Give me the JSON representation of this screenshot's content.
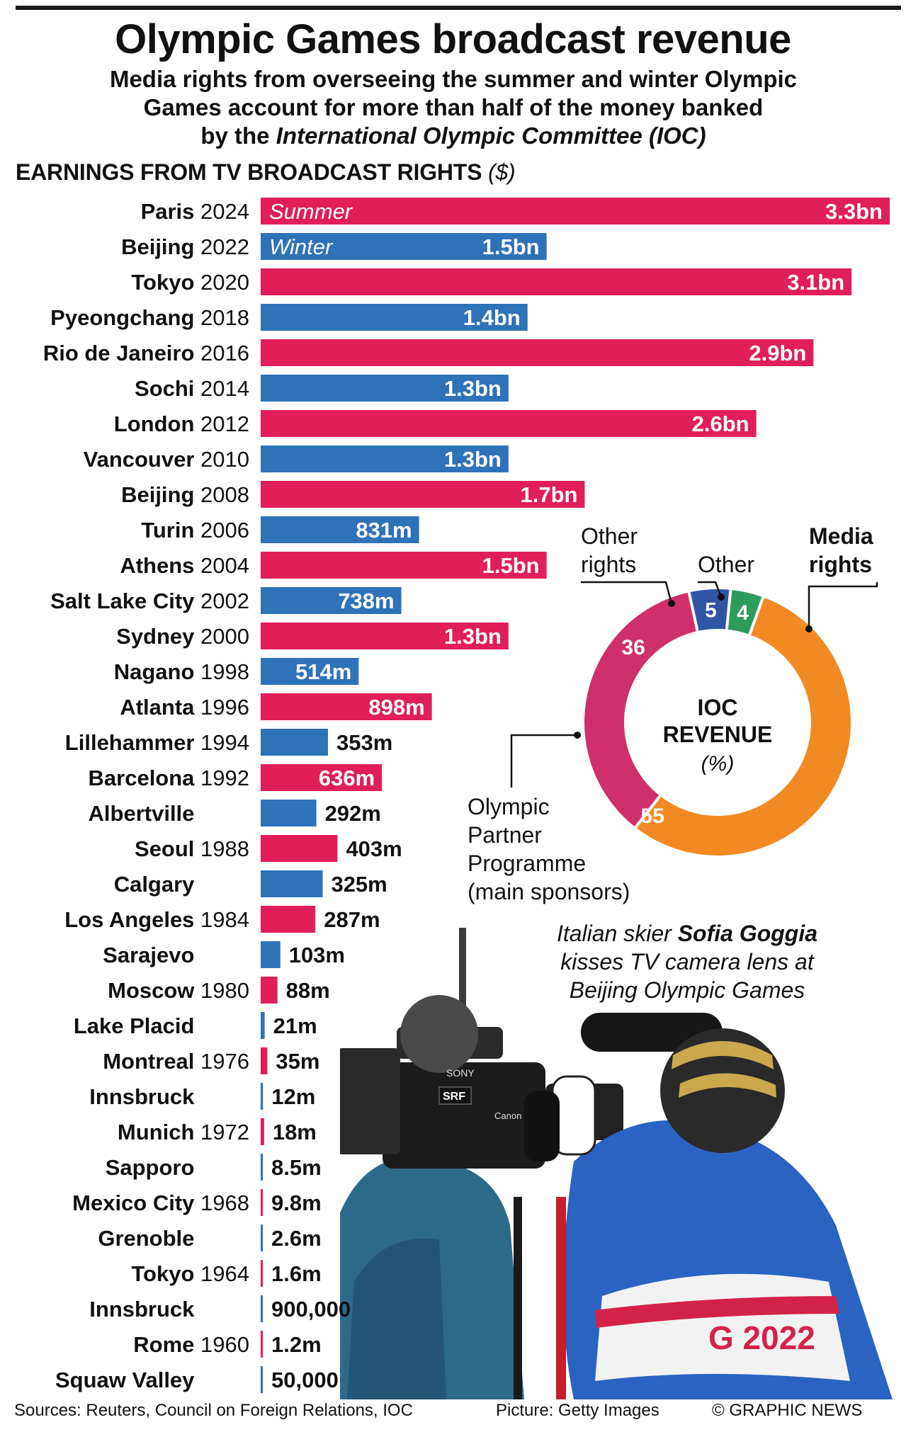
{
  "title": "Olympic Games broadcast revenue",
  "subtitle": {
    "line1": "Media rights from overseeing the summer and winter Olympic",
    "line2": "Games account for more than half of the money banked",
    "line3_prefix": "by the ",
    "line3_italic": "International Olympic Committee (IOC)"
  },
  "chart_heading": {
    "text": "EARNINGS FROM TV BROADCAST RIGHTS",
    "unit": "($)"
  },
  "colors": {
    "summer": "#e01e5a",
    "winter": "#2e72b8",
    "donut_media": "#f28a24",
    "donut_olympic": "#cf2f6b",
    "donut_other_rights": "#2f55a4",
    "donut_other": "#2e9b5c"
  },
  "chart_data": [
    {
      "type": "bar",
      "orientation": "horizontal",
      "title": "EARNINGS FROM TV BROADCAST RIGHTS ($)",
      "unit": "USD",
      "legend": [
        "Summer",
        "Winter"
      ],
      "categories": [
        {
          "city": "Paris",
          "year": "2024",
          "season": "summer",
          "value": 3300000000,
          "label": "3.3bn"
        },
        {
          "city": "Beijing",
          "year": "2022",
          "season": "winter",
          "value": 1500000000,
          "label": "1.5bn"
        },
        {
          "city": "Tokyo",
          "year": "2020",
          "season": "summer",
          "value": 3100000000,
          "label": "3.1bn"
        },
        {
          "city": "Pyeongchang",
          "year": "2018",
          "season": "winter",
          "value": 1400000000,
          "label": "1.4bn"
        },
        {
          "city": "Rio de Janeiro",
          "year": "2016",
          "season": "summer",
          "value": 2900000000,
          "label": "2.9bn"
        },
        {
          "city": "Sochi",
          "year": "2014",
          "season": "winter",
          "value": 1300000000,
          "label": "1.3bn"
        },
        {
          "city": "London",
          "year": "2012",
          "season": "summer",
          "value": 2600000000,
          "label": "2.6bn"
        },
        {
          "city": "Vancouver",
          "year": "2010",
          "season": "winter",
          "value": 1300000000,
          "label": "1.3bn"
        },
        {
          "city": "Beijing",
          "year": "2008",
          "season": "summer",
          "value": 1700000000,
          "label": "1.7bn"
        },
        {
          "city": "Turin",
          "year": "2006",
          "season": "winter",
          "value": 831000000,
          "label": "831m"
        },
        {
          "city": "Athens",
          "year": "2004",
          "season": "summer",
          "value": 1500000000,
          "label": "1.5bn"
        },
        {
          "city": "Salt Lake City",
          "year": "2002",
          "season": "winter",
          "value": 738000000,
          "label": "738m"
        },
        {
          "city": "Sydney",
          "year": "2000",
          "season": "summer",
          "value": 1300000000,
          "label": "1.3bn"
        },
        {
          "city": "Nagano",
          "year": "1998",
          "season": "winter",
          "value": 514000000,
          "label": "514m"
        },
        {
          "city": "Atlanta",
          "year": "1996",
          "season": "summer",
          "value": 898000000,
          "label": "898m"
        },
        {
          "city": "Lillehammer",
          "year": "1994",
          "season": "winter",
          "value": 353000000,
          "label": "353m"
        },
        {
          "city": "Barcelona",
          "year": "1992",
          "season": "summer",
          "value": 636000000,
          "label": "636m"
        },
        {
          "city": "Albertville",
          "year": "",
          "season": "winter",
          "value": 292000000,
          "label": "292m"
        },
        {
          "city": "Seoul",
          "year": "1988",
          "season": "summer",
          "value": 403000000,
          "label": "403m"
        },
        {
          "city": "Calgary",
          "year": "",
          "season": "winter",
          "value": 325000000,
          "label": "325m"
        },
        {
          "city": "Los Angeles",
          "year": "1984",
          "season": "summer",
          "value": 287000000,
          "label": "287m"
        },
        {
          "city": "Sarajevo",
          "year": "",
          "season": "winter",
          "value": 103000000,
          "label": "103m"
        },
        {
          "city": "Moscow",
          "year": "1980",
          "season": "summer",
          "value": 88000000,
          "label": "88m"
        },
        {
          "city": "Lake Placid",
          "year": "",
          "season": "winter",
          "value": 21000000,
          "label": "21m"
        },
        {
          "city": "Montreal",
          "year": "1976",
          "season": "summer",
          "value": 35000000,
          "label": "35m"
        },
        {
          "city": "Innsbruck",
          "year": "",
          "season": "winter",
          "value": 12000000,
          "label": "12m"
        },
        {
          "city": "Munich",
          "year": "1972",
          "season": "summer",
          "value": 18000000,
          "label": "18m"
        },
        {
          "city": "Sapporo",
          "year": "",
          "season": "winter",
          "value": 8500000,
          "label": "8.5m"
        },
        {
          "city": "Mexico City",
          "year": "1968",
          "season": "summer",
          "value": 9800000,
          "label": "9.8m"
        },
        {
          "city": "Grenoble",
          "year": "",
          "season": "winter",
          "value": 2600000,
          "label": "2.6m"
        },
        {
          "city": "Tokyo",
          "year": "1964",
          "season": "summer",
          "value": 1600000,
          "label": "1.6m"
        },
        {
          "city": "Innsbruck",
          "year": "",
          "season": "winter",
          "value": 900000,
          "label": "900,000"
        },
        {
          "city": "Rome",
          "year": "1960",
          "season": "summer",
          "value": 1200000,
          "label": "1.2m"
        },
        {
          "city": "Squaw Valley",
          "year": "",
          "season": "winter",
          "value": 50000,
          "label": "50,000"
        }
      ],
      "xlim": [
        0,
        3300000000
      ]
    },
    {
      "type": "pie",
      "variant": "donut",
      "title": "IOC REVENUE",
      "unit": "(%)",
      "slices": [
        {
          "name": "Media rights",
          "value": 55
        },
        {
          "name": "Olympic Partner Programme (main sponsors)",
          "value": 36
        },
        {
          "name": "Other rights",
          "value": 5
        },
        {
          "name": "Other",
          "value": 4
        }
      ]
    }
  ],
  "donut_labels": {
    "center_line1": "IOC",
    "center_line2": "REVENUE",
    "center_unit": "(%)",
    "media_rights_line1": "Media",
    "media_rights_line2": "rights",
    "other_rights_line1": "Other",
    "other_rights_line2": "rights",
    "other": "Other",
    "olympic_line1": "Olympic",
    "olympic_line2": "Partner",
    "olympic_line3": "Programme",
    "olympic_line4": "(main sponsors)"
  },
  "caption": {
    "line1_prefix": "Italian skier ",
    "line1_name": "Sofia Goggia",
    "line2": "kisses TV camera lens at",
    "line3": "Beijing Olympic Games"
  },
  "photo_text": {
    "camera_brand": "SONY",
    "camera_logo": "SRF",
    "lens_brand": "Canon",
    "bib_year": "G 2022"
  },
  "footer": {
    "sources": "Sources: Reuters, Council on Foreign Relations, IOC",
    "picture": "Picture: Getty Images",
    "copyright": "© GRAPHIC NEWS"
  }
}
